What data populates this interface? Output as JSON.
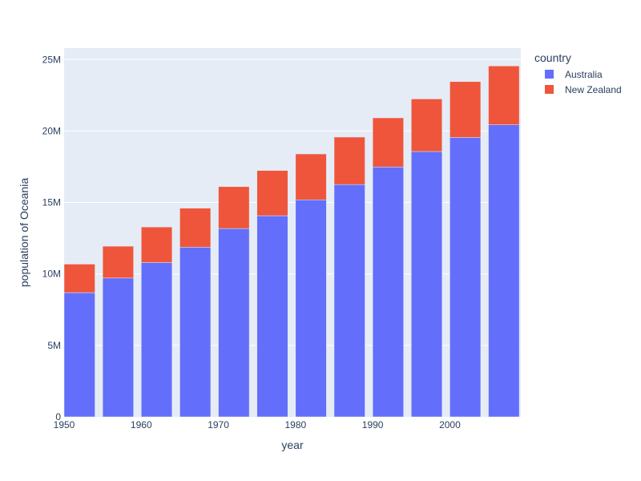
{
  "chart_data": {
    "type": "bar",
    "barmode": "stack",
    "x": [
      1952,
      1957,
      1962,
      1967,
      1972,
      1977,
      1982,
      1987,
      1992,
      1997,
      2002,
      2007
    ],
    "series": [
      {
        "name": "Australia",
        "color": "#636efa",
        "values": [
          8691212,
          9712569,
          10794968,
          11872264,
          13177000,
          14074100,
          15184200,
          16257249,
          17481977,
          18565243,
          19546792,
          20434176
        ]
      },
      {
        "name": "New Zealand",
        "color": "#ef553b",
        "values": [
          1994794,
          2229407,
          2488550,
          2728150,
          2929100,
          3164900,
          3210650,
          3317166,
          3437674,
          3676187,
          3908037,
          4115771
        ]
      }
    ],
    "xlabel": "year",
    "ylabel": "population of Oceania",
    "xlim": [
      1950,
      2009.2
    ],
    "ylim": [
      0,
      25800000
    ],
    "xticks": [
      1950,
      1960,
      1970,
      1980,
      1990,
      2000
    ],
    "xtick_labels": [
      "1950",
      "1960",
      "1970",
      "1980",
      "1990",
      "2000"
    ],
    "yticks": [
      0,
      5000000,
      10000000,
      15000000,
      20000000,
      25000000
    ],
    "ytick_labels": [
      "0",
      "5M",
      "10M",
      "15M",
      "20M",
      "25M"
    ],
    "legend_title": "country",
    "legend_position": "right",
    "grid": true,
    "plot_bgcolor": "#e5ecf6",
    "gridcolor": "#ffffff"
  }
}
